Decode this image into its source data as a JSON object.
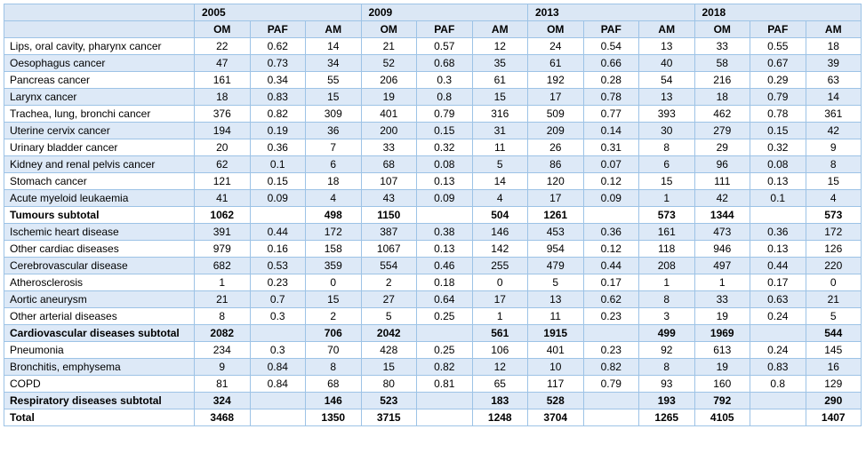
{
  "table": {
    "years": [
      "2005",
      "2009",
      "2013",
      "2018"
    ],
    "measures": [
      "OM",
      "PAF",
      "AM"
    ],
    "rows": [
      {
        "label": "Lips, oral cavity, pharynx cancer",
        "values": [
          22,
          0.62,
          14,
          21,
          0.57,
          12,
          24,
          0.54,
          13,
          33,
          0.55,
          18
        ]
      },
      {
        "label": "Oesophagus cancer",
        "values": [
          47,
          0.73,
          34,
          52,
          0.68,
          35,
          61,
          0.66,
          40,
          58,
          0.67,
          39
        ]
      },
      {
        "label": "Pancreas cancer",
        "values": [
          161,
          0.34,
          55,
          206,
          0.3,
          61,
          192,
          0.28,
          54,
          216,
          0.29,
          63
        ]
      },
      {
        "label": "Larynx cancer",
        "values": [
          18,
          0.83,
          15,
          19,
          0.8,
          15,
          17,
          0.78,
          13,
          18,
          0.79,
          14
        ]
      },
      {
        "label": "Trachea, lung, bronchi cancer",
        "values": [
          376,
          0.82,
          309,
          401,
          0.79,
          316,
          509,
          0.77,
          393,
          462,
          0.78,
          361
        ]
      },
      {
        "label": "Uterine cervix cancer",
        "values": [
          194,
          0.19,
          36,
          200,
          0.15,
          31,
          209,
          0.14,
          30,
          279,
          0.15,
          42
        ]
      },
      {
        "label": "Urinary bladder cancer",
        "values": [
          20,
          0.36,
          7,
          33,
          0.32,
          11,
          26,
          0.31,
          8,
          29,
          0.32,
          9
        ]
      },
      {
        "label": "Kidney and renal pelvis cancer",
        "values": [
          62,
          0.1,
          6,
          68,
          0.08,
          5,
          86,
          0.07,
          6,
          96,
          0.08,
          8
        ]
      },
      {
        "label": "Stomach cancer",
        "values": [
          121,
          0.15,
          18,
          107,
          0.13,
          14,
          120,
          0.12,
          15,
          111,
          0.13,
          15
        ]
      },
      {
        "label": "Acute myeloid leukaemia",
        "values": [
          41,
          0.09,
          4,
          43,
          0.09,
          4,
          17,
          0.09,
          1,
          42,
          0.1,
          4
        ]
      },
      {
        "label": "Tumours subtotal",
        "bold": true,
        "values": [
          1062,
          null,
          498,
          1150,
          null,
          504,
          1261,
          null,
          573,
          1344,
          null,
          573
        ]
      },
      {
        "label": "Ischemic heart disease",
        "values": [
          391,
          0.44,
          172,
          387,
          0.38,
          146,
          453,
          0.36,
          161,
          473,
          0.36,
          172
        ]
      },
      {
        "label": "Other cardiac diseases",
        "values": [
          979,
          0.16,
          158,
          1067,
          0.13,
          142,
          954,
          0.12,
          118,
          946,
          0.13,
          126
        ]
      },
      {
        "label": "Cerebrovascular disease",
        "values": [
          682,
          0.53,
          359,
          554,
          0.46,
          255,
          479,
          0.44,
          208,
          497,
          0.44,
          220
        ]
      },
      {
        "label": "Atherosclerosis",
        "values": [
          1,
          0.23,
          0,
          2,
          0.18,
          0,
          5,
          0.17,
          1,
          1,
          0.17,
          0
        ]
      },
      {
        "label": "Aortic aneurysm",
        "values": [
          21,
          0.7,
          15,
          27,
          0.64,
          17,
          13,
          0.62,
          8,
          33,
          0.63,
          21
        ]
      },
      {
        "label": "Other arterial diseases",
        "values": [
          8,
          0.3,
          2,
          5,
          0.25,
          1,
          11,
          0.23,
          3,
          19,
          0.24,
          5
        ]
      },
      {
        "label": "Cardiovascular diseases subtotal",
        "bold": true,
        "values": [
          2082,
          null,
          706,
          2042,
          null,
          561,
          1915,
          null,
          499,
          1969,
          null,
          544
        ]
      },
      {
        "label": "Pneumonia",
        "values": [
          234,
          0.3,
          70,
          428,
          0.25,
          106,
          401,
          0.23,
          92,
          613,
          0.24,
          145
        ]
      },
      {
        "label": "Bronchitis, emphysema",
        "values": [
          9,
          0.84,
          8,
          15,
          0.82,
          12,
          10,
          0.82,
          8,
          19,
          0.83,
          16
        ]
      },
      {
        "label": "COPD",
        "values": [
          81,
          0.84,
          68,
          80,
          0.81,
          65,
          117,
          0.79,
          93,
          160,
          0.8,
          129
        ]
      },
      {
        "label": "Respiratory diseases subtotal",
        "bold": true,
        "values": [
          324,
          null,
          146,
          523,
          null,
          183,
          528,
          null,
          193,
          792,
          null,
          290
        ]
      },
      {
        "label": "Total",
        "bold": true,
        "values": [
          3468,
          null,
          1350,
          3715,
          null,
          1248,
          3704,
          null,
          1265,
          4105,
          null,
          1407
        ]
      }
    ]
  }
}
